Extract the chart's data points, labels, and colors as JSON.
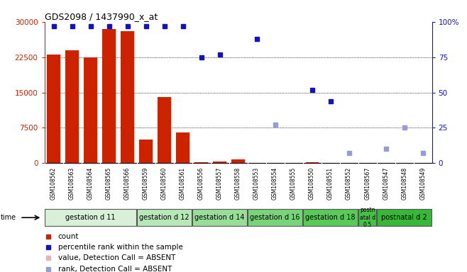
{
  "title": "GDS2098 / 1437990_x_at",
  "samples": [
    "GSM108562",
    "GSM108563",
    "GSM108564",
    "GSM108565",
    "GSM108566",
    "GSM108559",
    "GSM108560",
    "GSM108561",
    "GSM108556",
    "GSM108557",
    "GSM108558",
    "GSM108553",
    "GSM108554",
    "GSM108555",
    "GSM108550",
    "GSM108551",
    "GSM108552",
    "GSM108567",
    "GSM108547",
    "GSM108548",
    "GSM108549"
  ],
  "counts": [
    23000,
    24000,
    22500,
    28500,
    28000,
    5000,
    14000,
    6500,
    200,
    300,
    800,
    100,
    50,
    50,
    200,
    100,
    50,
    50,
    50,
    50,
    50
  ],
  "percentile_ranks": [
    97,
    97,
    97,
    97,
    97,
    97,
    97,
    97,
    75,
    77,
    null,
    88,
    null,
    null,
    52,
    44,
    null,
    null,
    null,
    null,
    null
  ],
  "absent_ranks": [
    null,
    null,
    null,
    null,
    null,
    null,
    null,
    null,
    null,
    null,
    null,
    null,
    27,
    null,
    null,
    null,
    7,
    null,
    10,
    25,
    7
  ],
  "detection_call_absent": [
    false,
    false,
    false,
    false,
    false,
    false,
    false,
    false,
    false,
    false,
    false,
    false,
    true,
    false,
    false,
    false,
    true,
    false,
    true,
    true,
    true
  ],
  "groups": [
    {
      "label": "gestation d 11",
      "start": 0,
      "end": 4,
      "color": "#d8f0d8"
    },
    {
      "label": "gestation d 12",
      "start": 5,
      "end": 7,
      "color": "#b8e8b8"
    },
    {
      "label": "gestation d 14",
      "start": 8,
      "end": 10,
      "color": "#98de98"
    },
    {
      "label": "gestation d 16",
      "start": 11,
      "end": 13,
      "color": "#78d478"
    },
    {
      "label": "gestation d 18",
      "start": 14,
      "end": 16,
      "color": "#58ca58"
    },
    {
      "label": "postn\natal d\n0.5",
      "start": 17,
      "end": 17,
      "color": "#48c048"
    },
    {
      "label": "postnatal d 2",
      "start": 18,
      "end": 20,
      "color": "#38b638"
    }
  ],
  "ylim_left": [
    0,
    30000
  ],
  "ylim_right": [
    0,
    100
  ],
  "yticks_left": [
    0,
    7500,
    15000,
    22500,
    30000
  ],
  "yticks_right": [
    0,
    25,
    50,
    75,
    100
  ],
  "bar_color_present": "#cc2200",
  "bar_color_absent": "#f0b0b0",
  "dot_color_present": "#1111cc",
  "dot_color_absent": "#9999dd",
  "background_color": "#ffffff",
  "plot_bg_color": "#ffffff",
  "xtick_bg_color": "#d8d8d8"
}
